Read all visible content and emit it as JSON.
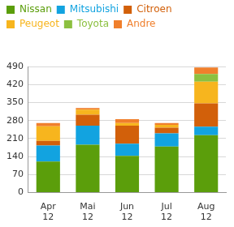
{
  "chart_data": {
    "type": "bar",
    "stacked": true,
    "grid": true,
    "legend": "top-left",
    "categories": [
      "Apr 12",
      "Mai 12",
      "Jun 12",
      "Jul 12",
      "Aug 12"
    ],
    "series": [
      {
        "name": "Nissan",
        "color": "#5b9e0b",
        "values": [
          121,
          186,
          143,
          179,
          223
        ]
      },
      {
        "name": "Mitsubishi",
        "color": "#12a3e0",
        "values": [
          62,
          74,
          47,
          51,
          33
        ]
      },
      {
        "name": "Citroen",
        "color": "#d2600a",
        "values": [
          18,
          43,
          70,
          22,
          91
        ]
      },
      {
        "name": "Peugeot",
        "color": "#f7b51e",
        "values": [
          57,
          19,
          10,
          11,
          84
        ]
      },
      {
        "name": "Toyota",
        "color": "#8cc040",
        "values": [
          0,
          0,
          0,
          0,
          30
        ]
      },
      {
        "name": "Andre",
        "color": "#f07f2c",
        "values": [
          12,
          7,
          15,
          7,
          25
        ]
      }
    ],
    "ylim": [
      0,
      490
    ],
    "yticks": [
      0,
      70,
      140,
      210,
      280,
      350,
      420,
      490
    ]
  }
}
